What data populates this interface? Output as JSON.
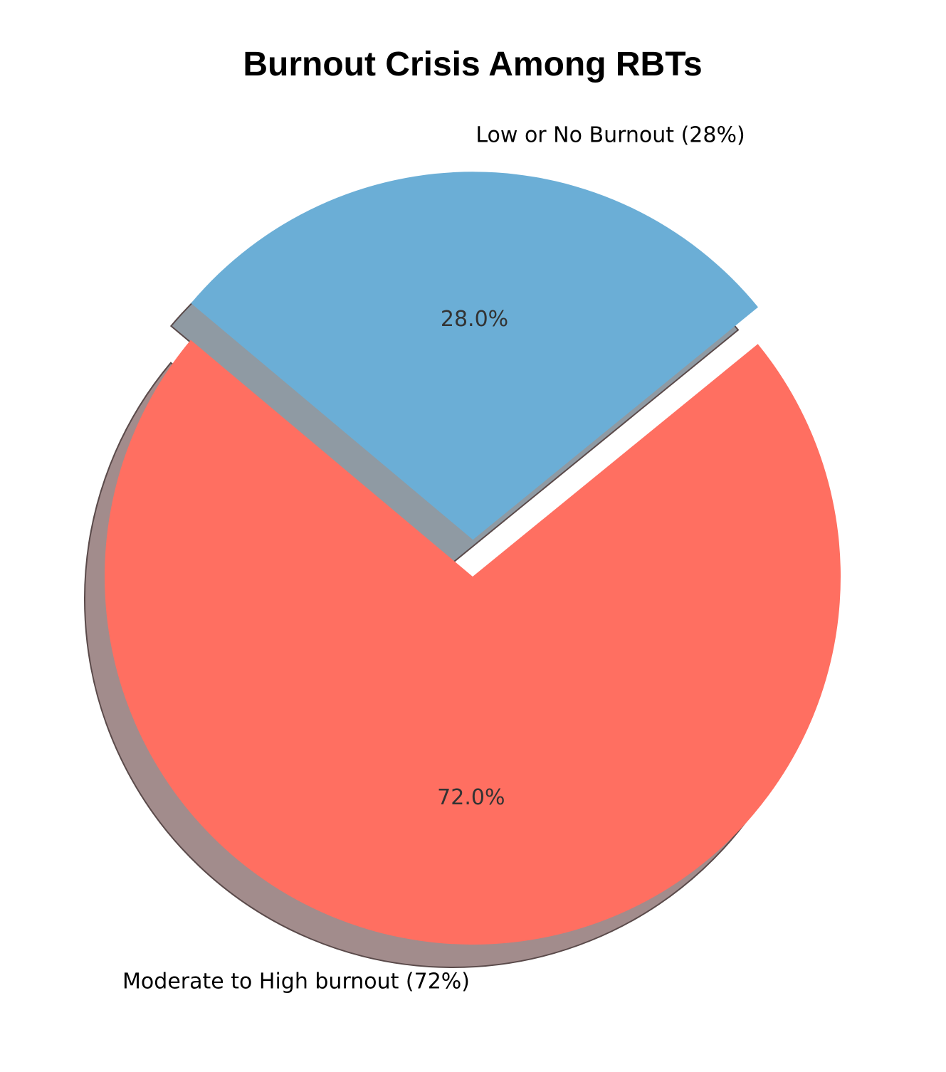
{
  "chart_data": {
    "type": "pie",
    "title": "Burnout Crisis Among RBTs",
    "slices": [
      {
        "label": "Moderate to High burnout (72%)",
        "value": 72.0,
        "pct_label": "72.0%",
        "color": "#ff6f61",
        "exploded": false
      },
      {
        "label": "Low or No Burnout (28%)",
        "value": 28.0,
        "pct_label": "28.0%",
        "color": "#6baed6",
        "exploded": true
      }
    ],
    "shadow": true,
    "shadow_colors": [
      "#a28c8c",
      "#8f9aa3"
    ],
    "edge_color": "#5a4a4a"
  }
}
